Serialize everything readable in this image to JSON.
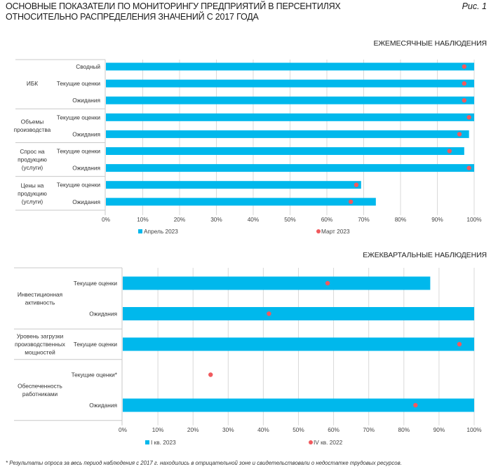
{
  "header": {
    "title_line1": "ОСНОВНЫЕ ПОКАЗАТЕЛИ ПО МОНИТОРИНГУ ПРЕДПРИЯТИЙ В ПЕРСЕНТИЛЯХ",
    "title_line2": "ОТНОСИТЕЛЬНО РАСПРЕДЕЛЕНИЯ ЗНАЧЕНИЙ С 2017 ГОДА",
    "figure_label": "Рис. 1"
  },
  "colors": {
    "bar": "#00B8EC",
    "dot": "#F05A5E",
    "grid": "#d9d9d9",
    "border": "#c8c8c8"
  },
  "footnote": "* Результаты опроса за весь период наблюдения с 2017 г. находились в отрицательной зоне и свидетельствовали о недостатке трудовых ресурсов.",
  "chart_data": [
    {
      "type": "bar",
      "orientation": "horizontal",
      "title": "ЕЖЕМЕСЯЧНЫЕ  НАБЛЮДЕНИЯ",
      "xlim": [
        0,
        100
      ],
      "x_ticks": [
        "0%",
        "10%",
        "20%",
        "30%",
        "40%",
        "50%",
        "60%",
        "70%",
        "80%",
        "90%",
        "100%"
      ],
      "grid": true,
      "legend": {
        "placement": "bottom",
        "entries": [
          "Апрель 2023",
          "Март 2023"
        ]
      },
      "groups": [
        {
          "name": "ИБК",
          "lines": [
            "ИБК"
          ],
          "rows": [
            {
              "label": "Сводный",
              "bar": 100,
              "dot": 97.3
            },
            {
              "label": "Текущие оценки",
              "bar": 100,
              "dot": 97.3
            },
            {
              "label": "Ожидания",
              "bar": 100,
              "dot": 97.3
            }
          ]
        },
        {
          "name": "Объемы производства",
          "lines": [
            "Объемы",
            "производства"
          ],
          "rows": [
            {
              "label": "Текущие оценки",
              "bar": 100,
              "dot": 98.6
            },
            {
              "label": "Ожидания",
              "bar": 98.6,
              "dot": 96.0
            }
          ]
        },
        {
          "name": "Спрос на продукцию (услуги)",
          "lines": [
            "Спрос на",
            "продукцию",
            "(услуги)"
          ],
          "rows": [
            {
              "label": "Текущие оценки",
              "bar": 97.3,
              "dot": 93.3
            },
            {
              "label": "Ожидания",
              "bar": 100,
              "dot": 98.6
            }
          ]
        },
        {
          "name": "Цены на продукцию (услуги)",
          "lines": [
            "Цены на",
            "продукцию",
            "(услуги)"
          ],
          "rows": [
            {
              "label": "Текущие оценки",
              "bar": 69.3,
              "dot": 68.0
            },
            {
              "label": "Ожидания",
              "bar": 73.3,
              "dot": 66.5
            }
          ]
        }
      ]
    },
    {
      "type": "bar",
      "orientation": "horizontal",
      "title": "ЕЖЕКВАРТАЛЬНЫЕ НАБЛЮДЕНИЯ",
      "xlim": [
        0,
        100
      ],
      "x_ticks": [
        "0%",
        "10%",
        "20%",
        "30%",
        "40%",
        "50%",
        "60%",
        "70%",
        "80%",
        "90%",
        "100%"
      ],
      "grid": true,
      "legend": {
        "placement": "bottom",
        "entries": [
          "I кв. 2023",
          "IV кв. 2022"
        ]
      },
      "groups": [
        {
          "name": "Инвестиционная активность",
          "lines": [
            "Инвестиционная",
            "активность"
          ],
          "rows": [
            {
              "label": "Текущие оценки",
              "bar": 87.5,
              "dot": 58.3
            },
            {
              "label": "Ожидания",
              "bar": 100,
              "dot": 41.6
            }
          ]
        },
        {
          "name": "Уровень загрузки производственных мощностей",
          "lines": [
            "Уровень загрузки",
            "производственных",
            "мощностей"
          ],
          "rows": [
            {
              "label": "Текущие оценки",
              "bar": 100,
              "dot": 95.8
            }
          ]
        },
        {
          "name": "Обеспеченность работниками",
          "lines": [
            "Обеспеченность",
            "работниками"
          ],
          "rows": [
            {
              "label": "Текущие оценки*",
              "bar": null,
              "dot": 25.0
            },
            {
              "label": "Ожидания",
              "bar": 100,
              "dot": 83.3
            }
          ]
        }
      ]
    }
  ]
}
